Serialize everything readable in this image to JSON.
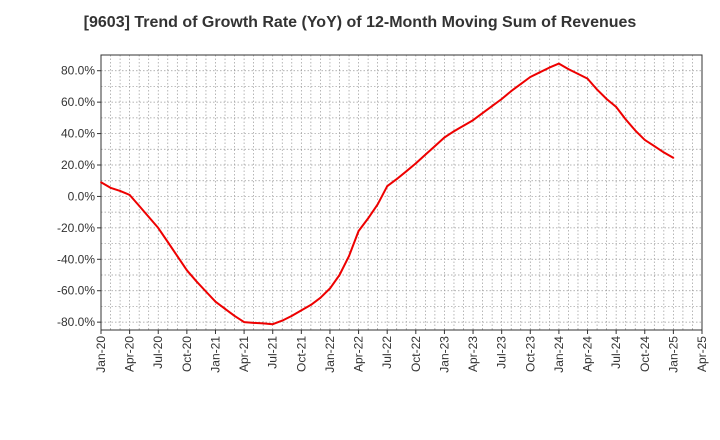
{
  "chart_data": {
    "type": "line",
    "title": "[9603]  Trend of Growth Rate (YoY) of 12-Month Moving Sum of Revenues",
    "xlabel": "",
    "ylabel": "",
    "x_ticks": [
      "Jan-20",
      "Apr-20",
      "Jul-20",
      "Oct-20",
      "Jan-21",
      "Apr-21",
      "Jul-21",
      "Oct-21",
      "Jan-22",
      "Apr-22",
      "Jul-22",
      "Oct-22",
      "Jan-23",
      "Apr-23",
      "Jul-23",
      "Oct-23",
      "Jan-24",
      "Apr-24",
      "Jul-24",
      "Oct-24",
      "Jan-25",
      "Apr-25"
    ],
    "y_ticks": [
      "80.0%",
      "60.0%",
      "40.0%",
      "20.0%",
      "0.0%",
      "-20.0%",
      "-40.0%",
      "-60.0%",
      "-80.0%"
    ],
    "y_tick_values": [
      80,
      60,
      40,
      20,
      0,
      -20,
      -40,
      -60,
      -80
    ],
    "xlim": [
      "Jan-20",
      "Apr-25"
    ],
    "ylim": [
      -85,
      90
    ],
    "grid": true,
    "line_color": "#ee0000",
    "series": [
      {
        "x": [
          "Jan-20",
          "Feb-20",
          "Mar-20",
          "Apr-20",
          "May-20",
          "Jun-20",
          "Jul-20",
          "Aug-20",
          "Sep-20",
          "Oct-20",
          "Nov-20",
          "Dec-20",
          "Jan-21",
          "Feb-21",
          "Mar-21",
          "Apr-21",
          "May-21",
          "Jun-21",
          "Jul-21",
          "Aug-21",
          "Sep-21",
          "Oct-21",
          "Nov-21",
          "Dec-21",
          "Jan-22",
          "Feb-22",
          "Mar-22",
          "Apr-22",
          "May-22",
          "Jun-22",
          "Jul-22",
          "Aug-22",
          "Sep-22",
          "Oct-22",
          "Nov-22",
          "Dec-22",
          "Jan-23",
          "Feb-23",
          "Mar-23",
          "Apr-23",
          "May-23",
          "Jun-23",
          "Jul-23",
          "Aug-23",
          "Sep-23",
          "Oct-23",
          "Nov-23",
          "Dec-23",
          "Jan-24",
          "Feb-24",
          "Mar-24",
          "Apr-24",
          "May-24",
          "Jun-24",
          "Jul-24",
          "Aug-24",
          "Sep-24",
          "Oct-24",
          "Nov-24",
          "Dec-24",
          "Jan-25"
        ],
        "values": [
          9.0,
          5.5,
          3.5,
          1.0,
          -6.0,
          -13.0,
          -20.0,
          -29.0,
          -38.0,
          -47.0,
          -54.0,
          -60.5,
          -67.0,
          -71.5,
          -76.0,
          -80.0,
          -80.5,
          -80.8,
          -81.3,
          -79.0,
          -76.0,
          -72.5,
          -69.0,
          -64.5,
          -58.5,
          -50.0,
          -38.0,
          -22.0,
          -14.0,
          -5.0,
          6.5,
          11.0,
          16.0,
          21.0,
          26.5,
          32.0,
          37.5,
          41.5,
          45.0,
          48.5,
          53.0,
          57.5,
          62.0,
          67.0,
          71.5,
          76.0,
          79.0,
          82.0,
          84.5,
          81.0,
          78.0,
          75.0,
          68.0,
          62.0,
          57.0,
          49.0,
          42.0,
          36.0,
          32.0,
          28.0,
          24.5
        ]
      }
    ]
  }
}
